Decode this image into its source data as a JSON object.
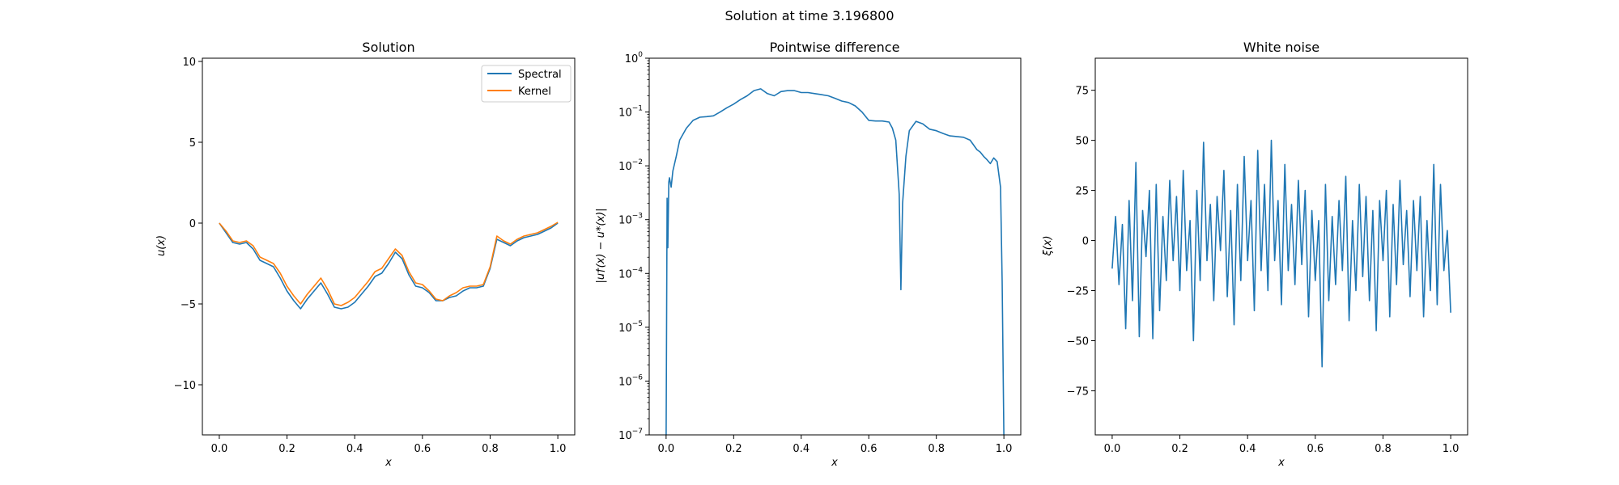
{
  "suptitle": "Solution at time 3.196800",
  "colors": {
    "spectral": "#1f77b4",
    "kernel": "#ff7f0e",
    "axes": "#000000"
  },
  "chart_data": [
    {
      "type": "line",
      "title": "Solution",
      "xlabel": "x",
      "ylabel": "u(x)",
      "xlim": [
        -0.05,
        1.05
      ],
      "ylim": [
        -13.1,
        10.2
      ],
      "xticks": [
        0.0,
        0.2,
        0.4,
        0.6,
        0.8,
        1.0
      ],
      "xtick_labels": [
        "0.0",
        "0.2",
        "0.4",
        "0.6",
        "0.8",
        "1.0"
      ],
      "yticks": [
        -10,
        -5,
        0,
        5,
        10
      ],
      "ytick_labels": [
        "−10",
        "−5",
        "0",
        "5",
        "10"
      ],
      "legend": {
        "placement": "top-right"
      },
      "series": [
        {
          "name": "Spectral",
          "x": [
            0.0,
            0.02,
            0.04,
            0.06,
            0.08,
            0.1,
            0.12,
            0.14,
            0.16,
            0.18,
            0.2,
            0.22,
            0.24,
            0.26,
            0.28,
            0.3,
            0.32,
            0.34,
            0.36,
            0.38,
            0.4,
            0.42,
            0.44,
            0.46,
            0.48,
            0.5,
            0.52,
            0.54,
            0.56,
            0.58,
            0.6,
            0.62,
            0.64,
            0.66,
            0.68,
            0.7,
            0.72,
            0.74,
            0.76,
            0.78,
            0.8,
            0.82,
            0.84,
            0.86,
            0.88,
            0.9,
            0.92,
            0.94,
            0.96,
            0.98,
            1.0
          ],
          "y": [
            0.0,
            -0.6,
            -1.2,
            -1.3,
            -1.2,
            -1.6,
            -2.3,
            -2.5,
            -2.7,
            -3.4,
            -4.2,
            -4.8,
            -5.3,
            -4.7,
            -4.2,
            -3.7,
            -4.4,
            -5.2,
            -5.3,
            -5.2,
            -4.9,
            -4.4,
            -3.9,
            -3.3,
            -3.1,
            -2.5,
            -1.8,
            -2.2,
            -3.2,
            -3.9,
            -4.0,
            -4.3,
            -4.8,
            -4.8,
            -4.6,
            -4.5,
            -4.2,
            -4.0,
            -4.0,
            -3.9,
            -2.8,
            -1.0,
            -1.2,
            -1.4,
            -1.1,
            -0.9,
            -0.8,
            -0.7,
            -0.5,
            -0.3,
            0.0
          ]
        },
        {
          "name": "Kernel",
          "x": [
            0.0,
            0.02,
            0.04,
            0.06,
            0.08,
            0.1,
            0.12,
            0.14,
            0.16,
            0.18,
            0.2,
            0.22,
            0.24,
            0.26,
            0.28,
            0.3,
            0.32,
            0.34,
            0.36,
            0.38,
            0.4,
            0.42,
            0.44,
            0.46,
            0.48,
            0.5,
            0.52,
            0.54,
            0.56,
            0.58,
            0.6,
            0.62,
            0.64,
            0.66,
            0.68,
            0.7,
            0.72,
            0.74,
            0.76,
            0.78,
            0.8,
            0.82,
            0.84,
            0.86,
            0.88,
            0.9,
            0.92,
            0.94,
            0.96,
            0.98,
            1.0
          ],
          "y": [
            0.0,
            -0.5,
            -1.1,
            -1.2,
            -1.1,
            -1.4,
            -2.1,
            -2.3,
            -2.5,
            -3.1,
            -3.9,
            -4.5,
            -5.0,
            -4.4,
            -3.9,
            -3.4,
            -4.1,
            -5.0,
            -5.1,
            -4.9,
            -4.6,
            -4.1,
            -3.6,
            -3.0,
            -2.8,
            -2.2,
            -1.6,
            -2.0,
            -3.0,
            -3.7,
            -3.8,
            -4.2,
            -4.7,
            -4.8,
            -4.5,
            -4.3,
            -4.0,
            -3.9,
            -3.9,
            -3.8,
            -2.7,
            -0.8,
            -1.1,
            -1.3,
            -1.0,
            -0.8,
            -0.7,
            -0.6,
            -0.4,
            -0.2,
            0.05
          ]
        }
      ]
    },
    {
      "type": "line",
      "title": "Pointwise difference",
      "xlabel": "x",
      "ylabel": "|u†(x) − u*(x)|",
      "yscale": "log",
      "xlim": [
        -0.05,
        1.05
      ],
      "ylim": [
        1e-07,
        1
      ],
      "xticks": [
        0.0,
        0.2,
        0.4,
        0.6,
        0.8,
        1.0
      ],
      "xtick_labels": [
        "0.0",
        "0.2",
        "0.4",
        "0.6",
        "0.8",
        "1.0"
      ],
      "yticks": [
        1e-07,
        1e-06,
        1e-05,
        0.0001,
        0.001,
        0.01,
        0.1,
        1
      ],
      "ytick_base": "10",
      "ytick_exponents": [
        "−7",
        "−6",
        "−5",
        "−4",
        "−3",
        "−2",
        "−1",
        "0"
      ],
      "series": [
        {
          "x": [
            0.0,
            0.003,
            0.005,
            0.008,
            0.01,
            0.015,
            0.02,
            0.03,
            0.04,
            0.06,
            0.08,
            0.1,
            0.12,
            0.14,
            0.16,
            0.18,
            0.2,
            0.22,
            0.24,
            0.26,
            0.28,
            0.3,
            0.32,
            0.34,
            0.36,
            0.38,
            0.4,
            0.42,
            0.44,
            0.46,
            0.48,
            0.5,
            0.52,
            0.54,
            0.56,
            0.58,
            0.6,
            0.62,
            0.64,
            0.66,
            0.67,
            0.68,
            0.69,
            0.695,
            0.7,
            0.71,
            0.72,
            0.74,
            0.76,
            0.78,
            0.8,
            0.82,
            0.84,
            0.86,
            0.88,
            0.9,
            0.92,
            0.93,
            0.94,
            0.95,
            0.96,
            0.97,
            0.98,
            0.99,
            0.995,
            1.0
          ],
          "y": [
            1e-07,
            0.0025,
            0.0003,
            0.005,
            0.006,
            0.004,
            0.008,
            0.015,
            0.03,
            0.05,
            0.07,
            0.08,
            0.082,
            0.085,
            0.1,
            0.12,
            0.14,
            0.17,
            0.2,
            0.25,
            0.27,
            0.22,
            0.2,
            0.24,
            0.25,
            0.25,
            0.23,
            0.23,
            0.22,
            0.21,
            0.2,
            0.18,
            0.16,
            0.15,
            0.13,
            0.1,
            0.07,
            0.068,
            0.068,
            0.065,
            0.05,
            0.03,
            0.003,
            5e-05,
            0.002,
            0.015,
            0.045,
            0.067,
            0.06,
            0.048,
            0.045,
            0.04,
            0.036,
            0.035,
            0.034,
            0.03,
            0.02,
            0.018,
            0.015,
            0.013,
            0.011,
            0.014,
            0.012,
            0.004,
            7e-05,
            1e-07
          ]
        }
      ]
    },
    {
      "type": "line",
      "title": "White noise",
      "xlabel": "x",
      "ylabel": "ξ(x)",
      "xlim": [
        -0.05,
        1.05
      ],
      "ylim": [
        -97,
        91
      ],
      "xticks": [
        0.0,
        0.2,
        0.4,
        0.6,
        0.8,
        1.0
      ],
      "xtick_labels": [
        "0.0",
        "0.2",
        "0.4",
        "0.6",
        "0.8",
        "1.0"
      ],
      "yticks": [
        -75,
        -50,
        -25,
        0,
        25,
        50,
        75
      ],
      "ytick_labels": [
        "−75",
        "−50",
        "−25",
        "0",
        "25",
        "50",
        "75"
      ],
      "series": [
        {
          "x": [
            0.0,
            0.01,
            0.02,
            0.03,
            0.04,
            0.05,
            0.06,
            0.07,
            0.08,
            0.09,
            0.1,
            0.11,
            0.12,
            0.13,
            0.14,
            0.15,
            0.16,
            0.17,
            0.18,
            0.19,
            0.2,
            0.21,
            0.22,
            0.23,
            0.24,
            0.25,
            0.26,
            0.27,
            0.28,
            0.29,
            0.3,
            0.31,
            0.32,
            0.33,
            0.34,
            0.35,
            0.36,
            0.37,
            0.38,
            0.39,
            0.4,
            0.41,
            0.42,
            0.43,
            0.44,
            0.45,
            0.46,
            0.47,
            0.48,
            0.49,
            0.5,
            0.51,
            0.52,
            0.53,
            0.54,
            0.55,
            0.56,
            0.57,
            0.58,
            0.59,
            0.6,
            0.61,
            0.62,
            0.63,
            0.64,
            0.65,
            0.66,
            0.67,
            0.68,
            0.69,
            0.7,
            0.71,
            0.72,
            0.73,
            0.74,
            0.75,
            0.76,
            0.77,
            0.78,
            0.79,
            0.8,
            0.81,
            0.82,
            0.83,
            0.84,
            0.85,
            0.86,
            0.87,
            0.88,
            0.89,
            0.9,
            0.91,
            0.92,
            0.93,
            0.94,
            0.95,
            0.96,
            0.97,
            0.98,
            0.99,
            1.0
          ],
          "y": [
            -14,
            12,
            -22,
            8,
            -44,
            20,
            -30,
            39,
            -48,
            15,
            -8,
            25,
            -49,
            28,
            -35,
            12,
            -20,
            30,
            -10,
            22,
            -25,
            35,
            -15,
            10,
            -50,
            25,
            -20,
            49,
            -10,
            18,
            -30,
            22,
            -5,
            35,
            -28,
            15,
            -42,
            28,
            -20,
            42,
            -10,
            20,
            -35,
            45,
            -15,
            28,
            -25,
            50,
            -10,
            20,
            -32,
            38,
            -15,
            18,
            -22,
            30,
            -12,
            25,
            -38,
            15,
            -20,
            10,
            -63,
            28,
            -30,
            12,
            -22,
            20,
            -15,
            32,
            -40,
            10,
            -25,
            28,
            -18,
            22,
            -30,
            15,
            -45,
            20,
            -10,
            25,
            -38,
            18,
            -22,
            30,
            -12,
            15,
            -28,
            20,
            -15,
            22,
            -38,
            10,
            -25,
            38,
            -32,
            28,
            -15,
            5,
            -36
          ]
        }
      ]
    }
  ]
}
